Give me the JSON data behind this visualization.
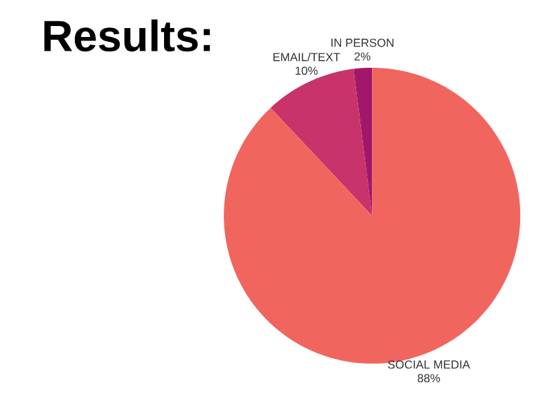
{
  "chart_data": {
    "type": "pie",
    "title": "Results:",
    "categories": [
      "SOCIAL MEDIA",
      "EMAIL/TEXT",
      "IN PERSON"
    ],
    "values": [
      88,
      10,
      2
    ],
    "value_labels": [
      "88%",
      "10%",
      "2%"
    ],
    "colors": [
      "#f0665e",
      "#c7336a",
      "#a3176b"
    ]
  }
}
